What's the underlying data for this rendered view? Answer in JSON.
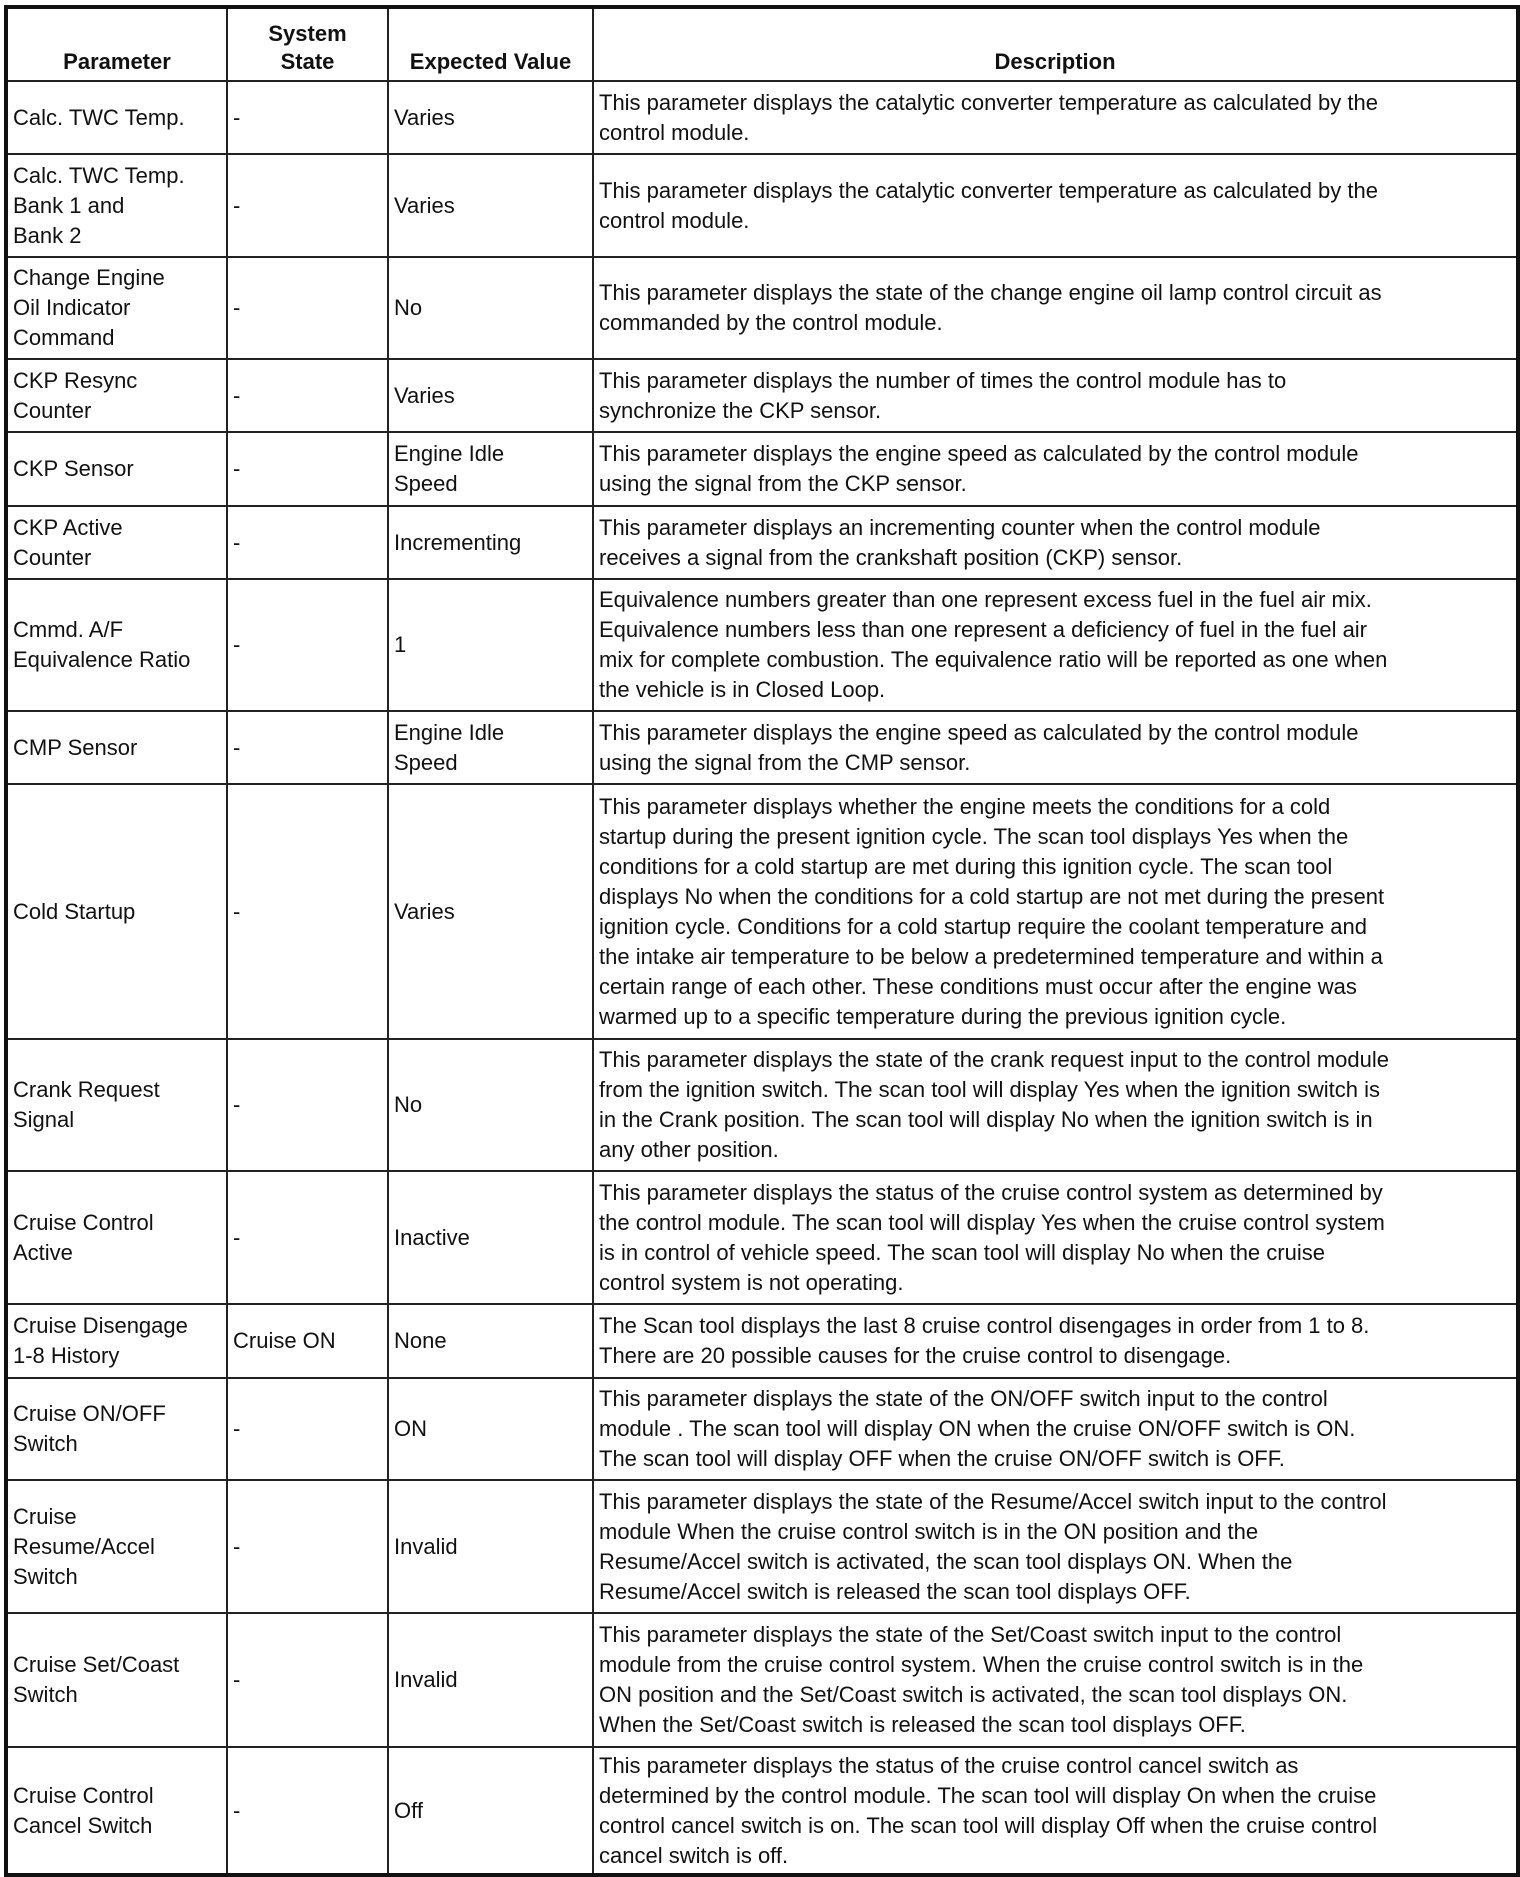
{
  "headers": [
    "Parameter",
    "System\nState",
    "Expected Value",
    "Description"
  ],
  "rows": [
    {
      "parameter": "Calc. TWC Temp.",
      "state": "-",
      "expected": "Varies",
      "description": "This parameter displays the catalytic converter temperature as calculated by the\ncontrol module."
    },
    {
      "parameter": "Calc. TWC Temp.\nBank 1 and\nBank 2",
      "state": "-",
      "expected": "Varies",
      "description": "This parameter displays the catalytic converter temperature as calculated by the\ncontrol module."
    },
    {
      "parameter": "Change Engine\nOil Indicator\nCommand",
      "state": "-",
      "expected": "No",
      "description": "This parameter displays the state of the change engine oil lamp control circuit as\ncommanded by the control module."
    },
    {
      "parameter": "CKP Resync\nCounter",
      "state": "-",
      "expected": "Varies",
      "description": "This parameter displays the number of times the control module has to\nsynchronize the CKP sensor."
    },
    {
      "parameter": "CKP Sensor",
      "state": "-",
      "expected": "Engine Idle\nSpeed",
      "description": "This parameter displays the engine speed as calculated by the control module\nusing the signal from the CKP sensor."
    },
    {
      "parameter": "CKP Active\nCounter",
      "state": "-",
      "expected": "Incrementing",
      "description": "This parameter displays an incrementing counter when the control module\nreceives a signal from the crankshaft position (CKP) sensor."
    },
    {
      "parameter": "Cmmd. A/F\nEquivalence Ratio",
      "state": "-",
      "expected": "1",
      "description": "Equivalence numbers greater than one represent excess fuel in the fuel air mix.\nEquivalence numbers less than one represent a deficiency of fuel in the fuel air\nmix for complete combustion. The equivalence ratio will be reported as one when\nthe vehicle is in Closed Loop."
    },
    {
      "parameter": "CMP Sensor",
      "state": "-",
      "expected": "Engine Idle\nSpeed",
      "description": "This parameter displays the engine speed as calculated by the control module\nusing the signal from the CMP sensor."
    },
    {
      "parameter": "Cold Startup",
      "state": "-",
      "expected": "Varies",
      "description": "This parameter displays whether the engine meets the conditions for a cold\nstartup during the present ignition cycle. The scan tool displays Yes when the\nconditions for a cold startup are met during this ignition cycle. The scan tool\ndisplays No when the conditions for a cold startup are not met during the present\nignition cycle. Conditions for a cold startup require the coolant temperature and\nthe intake air temperature to be below a predetermined temperature and within a\ncertain range of each other. These conditions must occur after the engine was\nwarmed up to a specific temperature during the previous ignition cycle."
    },
    {
      "parameter": "Crank Request\nSignal",
      "state": "-",
      "expected": "No",
      "description": "This parameter displays the state of the crank request input to the control module\nfrom the ignition switch. The scan tool will display Yes when the ignition switch is\nin the Crank position. The scan tool will display No when the ignition switch is in\nany other position."
    },
    {
      "parameter": "Cruise Control\nActive",
      "state": "-",
      "expected": "Inactive",
      "description": "This parameter displays the status of the cruise control system as determined by\nthe control module. The scan tool will display Yes when the cruise control system\nis in control of vehicle speed. The scan tool will display No when the cruise\ncontrol system is not operating."
    },
    {
      "parameter": "Cruise Disengage\n1-8 History",
      "state": "Cruise ON",
      "expected": "None",
      "description": "The Scan tool displays the last 8 cruise control disengages in order from 1 to 8.\nThere are 20 possible causes for the cruise control to disengage."
    },
    {
      "parameter": "Cruise ON/OFF\nSwitch",
      "state": "-",
      "expected": "ON",
      "description": "This parameter displays the state of the ON/OFF switch input to the control\nmodule . The scan tool will display ON when the cruise ON/OFF switch is ON.\nThe scan tool will display OFF when the cruise ON/OFF switch is OFF."
    },
    {
      "parameter": "Cruise\nResume/Accel\nSwitch",
      "state": "-",
      "expected": "Invalid",
      "description": "This parameter displays the state of the Resume/Accel switch input to the control\nmodule When the cruise control switch is in the ON position and the\nResume/Accel switch is activated, the scan tool displays ON. When the\nResume/Accel switch is released the scan tool displays OFF."
    },
    {
      "parameter": "Cruise Set/Coast\nSwitch",
      "state": "-",
      "expected": "Invalid",
      "description": "This parameter displays the state of the Set/Coast switch input to the control\nmodule from the cruise control system. When the cruise control switch is in the\nON position and the Set/Coast switch is activated, the scan tool displays ON.\nWhen the Set/Coast switch is released the scan tool displays OFF."
    },
    {
      "parameter": "Cruise Control\nCancel Switch",
      "state": "-",
      "expected": "Off",
      "description": "This parameter displays the status of the cruise control cancel switch as\ndetermined by the control module. The scan tool will display On when the cruise\ncontrol cancel switch is on. The scan tool will display Off when the cruise control\ncancel switch is off."
    }
  ]
}
